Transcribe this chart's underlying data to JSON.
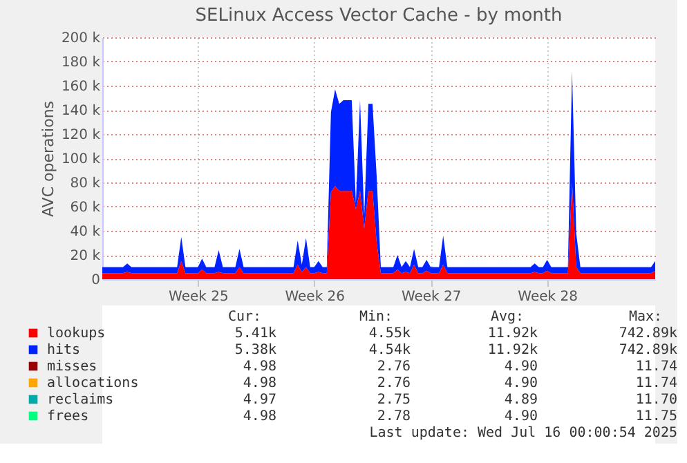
{
  "chart_data": {
    "type": "area",
    "title": "SELinux Access Vector Cache - by month",
    "ylabel": "AVC operations",
    "stacked": true,
    "grid": true,
    "legend": "bottom",
    "categories": [
      null,
      null,
      null,
      null,
      null,
      null,
      null,
      null,
      null,
      null,
      null,
      null,
      null,
      null,
      null,
      null,
      null,
      null,
      null,
      null,
      null,
      null,
      null,
      "Week 25",
      null,
      null,
      null,
      null,
      null,
      null,
      null,
      null,
      null,
      null,
      null,
      null,
      null,
      null,
      null,
      null,
      null,
      null,
      null,
      null,
      null,
      null,
      null,
      null,
      null,
      null,
      null,
      "Week 26",
      null,
      null,
      null,
      null,
      null,
      null,
      null,
      null,
      null,
      null,
      null,
      null,
      null,
      null,
      null,
      null,
      null,
      null,
      null,
      null,
      null,
      null,
      null,
      null,
      null,
      null,
      null,
      "Week 27",
      null,
      null,
      null,
      null,
      null,
      null,
      null,
      null,
      null,
      null,
      null,
      null,
      null,
      null,
      null,
      null,
      null,
      null,
      null,
      null,
      null,
      null,
      null,
      null,
      null,
      null,
      null,
      "Week 28",
      null,
      null,
      null,
      null,
      null,
      null,
      null,
      null,
      null,
      null,
      null,
      null,
      null,
      null,
      null,
      null,
      null,
      null,
      null,
      null,
      null,
      null,
      null,
      null,
      null,
      null
    ],
    "ylim": [
      0,
      200000
    ],
    "yticks": [
      0,
      {
        "value": 20000,
        "label": "20 k"
      },
      {
        "value": 40000,
        "label": "40 k"
      },
      {
        "value": 60000,
        "label": "60 k"
      },
      {
        "value": 80000,
        "label": "80 k"
      },
      {
        "value": 100000,
        "label": "100 k"
      },
      {
        "value": 120000,
        "label": "120 k"
      },
      {
        "value": 140000,
        "label": "140 k"
      },
      {
        "value": 160000,
        "label": "160 k"
      },
      {
        "value": 180000,
        "label": "180 k"
      },
      {
        "value": 200000,
        "label": "200 k"
      }
    ],
    "series": [
      {
        "name": "lookups",
        "color": "#ff0000",
        "values": [
          5000,
          5000,
          5000,
          5000,
          5000,
          5000,
          6000,
          5000,
          5000,
          5000,
          5000,
          5000,
          5000,
          5000,
          5000,
          5000,
          5000,
          5000,
          5000,
          15000,
          5000,
          5000,
          5000,
          5000,
          8000,
          5000,
          5000,
          5000,
          6000,
          5000,
          5000,
          5000,
          5000,
          10000,
          5000,
          5000,
          5000,
          5000,
          5000,
          5000,
          5000,
          5000,
          5000,
          5000,
          5000,
          5000,
          5000,
          12000,
          6000,
          10000,
          5000,
          5000,
          6000,
          5000,
          5000,
          72000,
          77000,
          73000,
          73000,
          73000,
          73000,
          58000,
          73000,
          42000,
          73000,
          73000,
          30000,
          5000,
          5000,
          5000,
          5000,
          8000,
          5000,
          6000,
          5000,
          12000,
          5000,
          5000,
          7000,
          5000,
          5000,
          5000,
          12000,
          5000,
          5000,
          5000,
          5000,
          5000,
          5000,
          5000,
          5000,
          5000,
          5000,
          5000,
          5000,
          5000,
          5000,
          5000,
          5000,
          5000,
          5000,
          5000,
          5000,
          5000,
          6000,
          5000,
          5000,
          7000,
          5000,
          5000,
          5000,
          5000,
          5000,
          80000,
          10000,
          5000,
          5000,
          5000,
          5000,
          5000,
          5000,
          5000,
          5000,
          5000,
          5000,
          5000,
          5000,
          5000,
          5000,
          5000,
          5000,
          5000,
          5000,
          7000
        ]
      },
      {
        "name": "hits",
        "color": "#0022ff",
        "values": [
          5000,
          5000,
          5000,
          5000,
          5000,
          5000,
          7000,
          5000,
          5000,
          5000,
          5000,
          5000,
          5000,
          5000,
          5000,
          5000,
          5000,
          5000,
          5000,
          20000,
          5000,
          5000,
          5000,
          5000,
          9000,
          5000,
          5000,
          5000,
          18000,
          5000,
          5000,
          5000,
          5000,
          15000,
          5000,
          5000,
          5000,
          5000,
          5000,
          5000,
          5000,
          5000,
          5000,
          5000,
          5000,
          5000,
          5000,
          20000,
          6000,
          24000,
          5000,
          5000,
          9000,
          5000,
          5000,
          66000,
          80000,
          72000,
          75000,
          75000,
          75000,
          5000,
          75000,
          10000,
          72000,
          72000,
          55000,
          5000,
          5000,
          5000,
          5000,
          12000,
          5000,
          9000,
          5000,
          13000,
          5000,
          5000,
          9000,
          5000,
          5000,
          5000,
          24000,
          5000,
          5000,
          5000,
          5000,
          5000,
          5000,
          5000,
          5000,
          5000,
          5000,
          5000,
          5000,
          5000,
          5000,
          5000,
          5000,
          5000,
          5000,
          5000,
          5000,
          5000,
          7000,
          5000,
          5000,
          9000,
          5000,
          5000,
          5000,
          5000,
          5000,
          92000,
          28000,
          5000,
          5000,
          5000,
          5000,
          5000,
          5000,
          5000,
          5000,
          5000,
          5000,
          5000,
          5000,
          5000,
          5000,
          5000,
          5000,
          5000,
          5000,
          8000
        ]
      },
      {
        "name": "misses",
        "color": "#990000",
        "values": [
          null,
          null,
          null,
          null,
          null,
          null,
          null,
          null,
          null,
          null,
          null,
          null,
          null,
          null,
          null,
          null,
          null,
          null,
          null,
          null,
          null,
          null,
          null,
          null,
          null,
          null,
          null,
          null,
          null,
          null,
          null,
          null,
          null,
          null,
          null,
          null,
          null,
          null,
          null,
          null,
          null,
          null,
          null,
          null,
          null,
          null,
          null,
          null,
          null,
          null,
          null,
          null,
          null,
          null,
          null,
          null,
          null,
          null,
          null,
          null,
          null,
          null,
          null,
          null,
          null,
          null,
          null,
          null,
          null,
          null,
          null,
          null,
          null,
          null,
          null,
          null,
          null,
          null,
          null,
          null,
          null,
          null,
          null,
          null,
          null,
          null,
          null,
          null,
          null,
          null,
          null,
          null,
          null,
          null,
          null,
          null,
          null,
          null,
          null,
          null,
          null,
          null,
          null,
          null,
          null,
          null,
          null,
          null,
          null,
          null,
          null,
          null,
          null,
          null,
          null,
          null,
          null,
          null,
          null,
          null,
          null,
          null,
          null,
          null,
          null,
          null,
          null,
          null,
          null,
          null,
          null,
          null,
          null,
          null
        ]
      },
      {
        "name": "allocations",
        "color": "#ffa500",
        "values": [
          null,
          null,
          null,
          null,
          null,
          null,
          null,
          null,
          null,
          null,
          null,
          null,
          null,
          null,
          null,
          null,
          null,
          null,
          null,
          null,
          null,
          null,
          null,
          null,
          null,
          null,
          null,
          null,
          null,
          null,
          null,
          null,
          null,
          null,
          null,
          null,
          null,
          null,
          null,
          null,
          null,
          null,
          null,
          null,
          null,
          null,
          null,
          null,
          null,
          null,
          null,
          null,
          null,
          null,
          null,
          null,
          null,
          null,
          null,
          null,
          null,
          null,
          null,
          null,
          null,
          null,
          null,
          null,
          null,
          null,
          null,
          null,
          null,
          null,
          null,
          null,
          null,
          null,
          null,
          null,
          null,
          null,
          null,
          null,
          null,
          null,
          null,
          null,
          null,
          null,
          null,
          null,
          null,
          null,
          null,
          null,
          null,
          null,
          null,
          null,
          null,
          null,
          null,
          null,
          null,
          null,
          null,
          null,
          null,
          null,
          null,
          null,
          null,
          null,
          null,
          null,
          null,
          null,
          null,
          null,
          null,
          null,
          null,
          null,
          null,
          null,
          null,
          null,
          null,
          null,
          null,
          null,
          null,
          null
        ]
      },
      {
        "name": "reclaims",
        "color": "#00aaaa",
        "values": [
          null,
          null,
          null,
          null,
          null,
          null,
          null,
          null,
          null,
          null,
          null,
          null,
          null,
          null,
          null,
          null,
          null,
          null,
          null,
          null,
          null,
          null,
          null,
          null,
          null,
          null,
          null,
          null,
          null,
          null,
          null,
          null,
          null,
          null,
          null,
          null,
          null,
          null,
          null,
          null,
          null,
          null,
          null,
          null,
          null,
          null,
          null,
          null,
          null,
          null,
          null,
          null,
          null,
          null,
          null,
          null,
          null,
          null,
          null,
          null,
          null,
          null,
          null,
          null,
          null,
          null,
          null,
          null,
          null,
          null,
          null,
          null,
          null,
          null,
          null,
          null,
          null,
          null,
          null,
          null,
          null,
          null,
          null,
          null,
          null,
          null,
          null,
          null,
          null,
          null,
          null,
          null,
          null,
          null,
          null,
          null,
          null,
          null,
          null,
          null,
          null,
          null,
          null,
          null,
          null,
          null,
          null,
          null,
          null,
          null,
          null,
          null,
          null,
          null,
          null,
          null,
          null,
          null,
          null,
          null,
          null,
          null,
          null,
          null,
          null,
          null,
          null,
          null,
          null,
          null,
          null,
          null,
          null,
          null
        ]
      },
      {
        "name": "frees",
        "color": "#00ff7f",
        "values": [
          null,
          null,
          null,
          null,
          null,
          null,
          null,
          null,
          null,
          null,
          null,
          null,
          null,
          null,
          null,
          null,
          null,
          null,
          null,
          null,
          null,
          null,
          null,
          null,
          null,
          null,
          null,
          null,
          null,
          null,
          null,
          null,
          null,
          null,
          null,
          null,
          null,
          null,
          null,
          null,
          null,
          null,
          null,
          null,
          null,
          null,
          null,
          null,
          null,
          null,
          null,
          null,
          null,
          null,
          null,
          null,
          null,
          null,
          null,
          null,
          null,
          null,
          null,
          null,
          null,
          null,
          null,
          null,
          null,
          null,
          null,
          null,
          null,
          null,
          null,
          null,
          null,
          null,
          null,
          null,
          null,
          null,
          null,
          null,
          null,
          null,
          null,
          null,
          null,
          null,
          null,
          null,
          null,
          null,
          null,
          null,
          null,
          null,
          null,
          null,
          null,
          null,
          null,
          null,
          null,
          null,
          null,
          null,
          null,
          null,
          null,
          null,
          null,
          null,
          null,
          null,
          null,
          null,
          null,
          null,
          null,
          null,
          null,
          null,
          null,
          null,
          null,
          null,
          null,
          null,
          null,
          null,
          null,
          null
        ]
      }
    ],
    "annotations": [
      "Cur:",
      "Min:",
      "Avg:",
      "Max:",
      "5.41k",
      "4.55k",
      "11.92k",
      "742.89k",
      "5.38k",
      "4.54k",
      "11.92k",
      "742.89k",
      "4.98",
      "2.76",
      "4.90",
      "11.74",
      "4.98",
      "2.76",
      "4.90",
      "11.74",
      "4.97",
      "2.75",
      "4.89",
      "11.70",
      "4.98",
      "2.78",
      "4.90",
      "11.75",
      "Last update: Wed Jul 16 00:00:54 2025"
    ]
  }
}
